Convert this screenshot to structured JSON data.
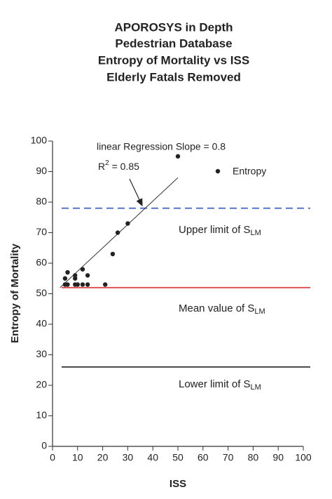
{
  "chart_data": {
    "type": "scatter",
    "title": [
      "APOROSYS in Depth",
      "Pedestrian Database",
      "Entropy of Mortality vs ISS",
      "Elderly Fatals Removed"
    ],
    "x_label": "ISS",
    "y_label": "Entropy of Mortality",
    "xlim": [
      0,
      100
    ],
    "ylim": [
      0,
      100
    ],
    "xticks": [
      0,
      10,
      20,
      30,
      40,
      50,
      60,
      70,
      80,
      90,
      100
    ],
    "yticks": [
      0,
      10,
      20,
      30,
      40,
      50,
      60,
      70,
      80,
      90,
      100
    ],
    "series": [
      {
        "name": "Entropy",
        "color": "#222222",
        "x": [
          5,
          5,
          6,
          6,
          9,
          9,
          9,
          10,
          12,
          12,
          14,
          14,
          21,
          24,
          26,
          30,
          50
        ],
        "values": [
          53,
          55,
          57,
          53,
          55,
          56,
          53,
          53,
          58,
          53,
          56,
          53,
          53,
          63,
          70,
          73,
          95
        ]
      }
    ],
    "regression_line": {
      "x": [
        3,
        50
      ],
      "values": [
        52,
        88
      ],
      "color": "#333333"
    },
    "annotations": {
      "slope": "linear Regression Slope = 0.8",
      "r2_base": "R",
      "r2_sup": "2",
      "r2_rest": " = 0.85"
    },
    "reference_lines": [
      {
        "value": 78,
        "color": "#4a6cc8",
        "dashed": true,
        "label": "Upper limit of S",
        "label_sub": "LM"
      },
      {
        "value": 52,
        "color": "#e04848",
        "dashed": false,
        "label": "Mean value of S",
        "label_sub": "LM"
      },
      {
        "value": 26,
        "color": "#333333",
        "dashed": false,
        "label": "Lower limit of S",
        "label_sub": "LM"
      }
    ]
  }
}
